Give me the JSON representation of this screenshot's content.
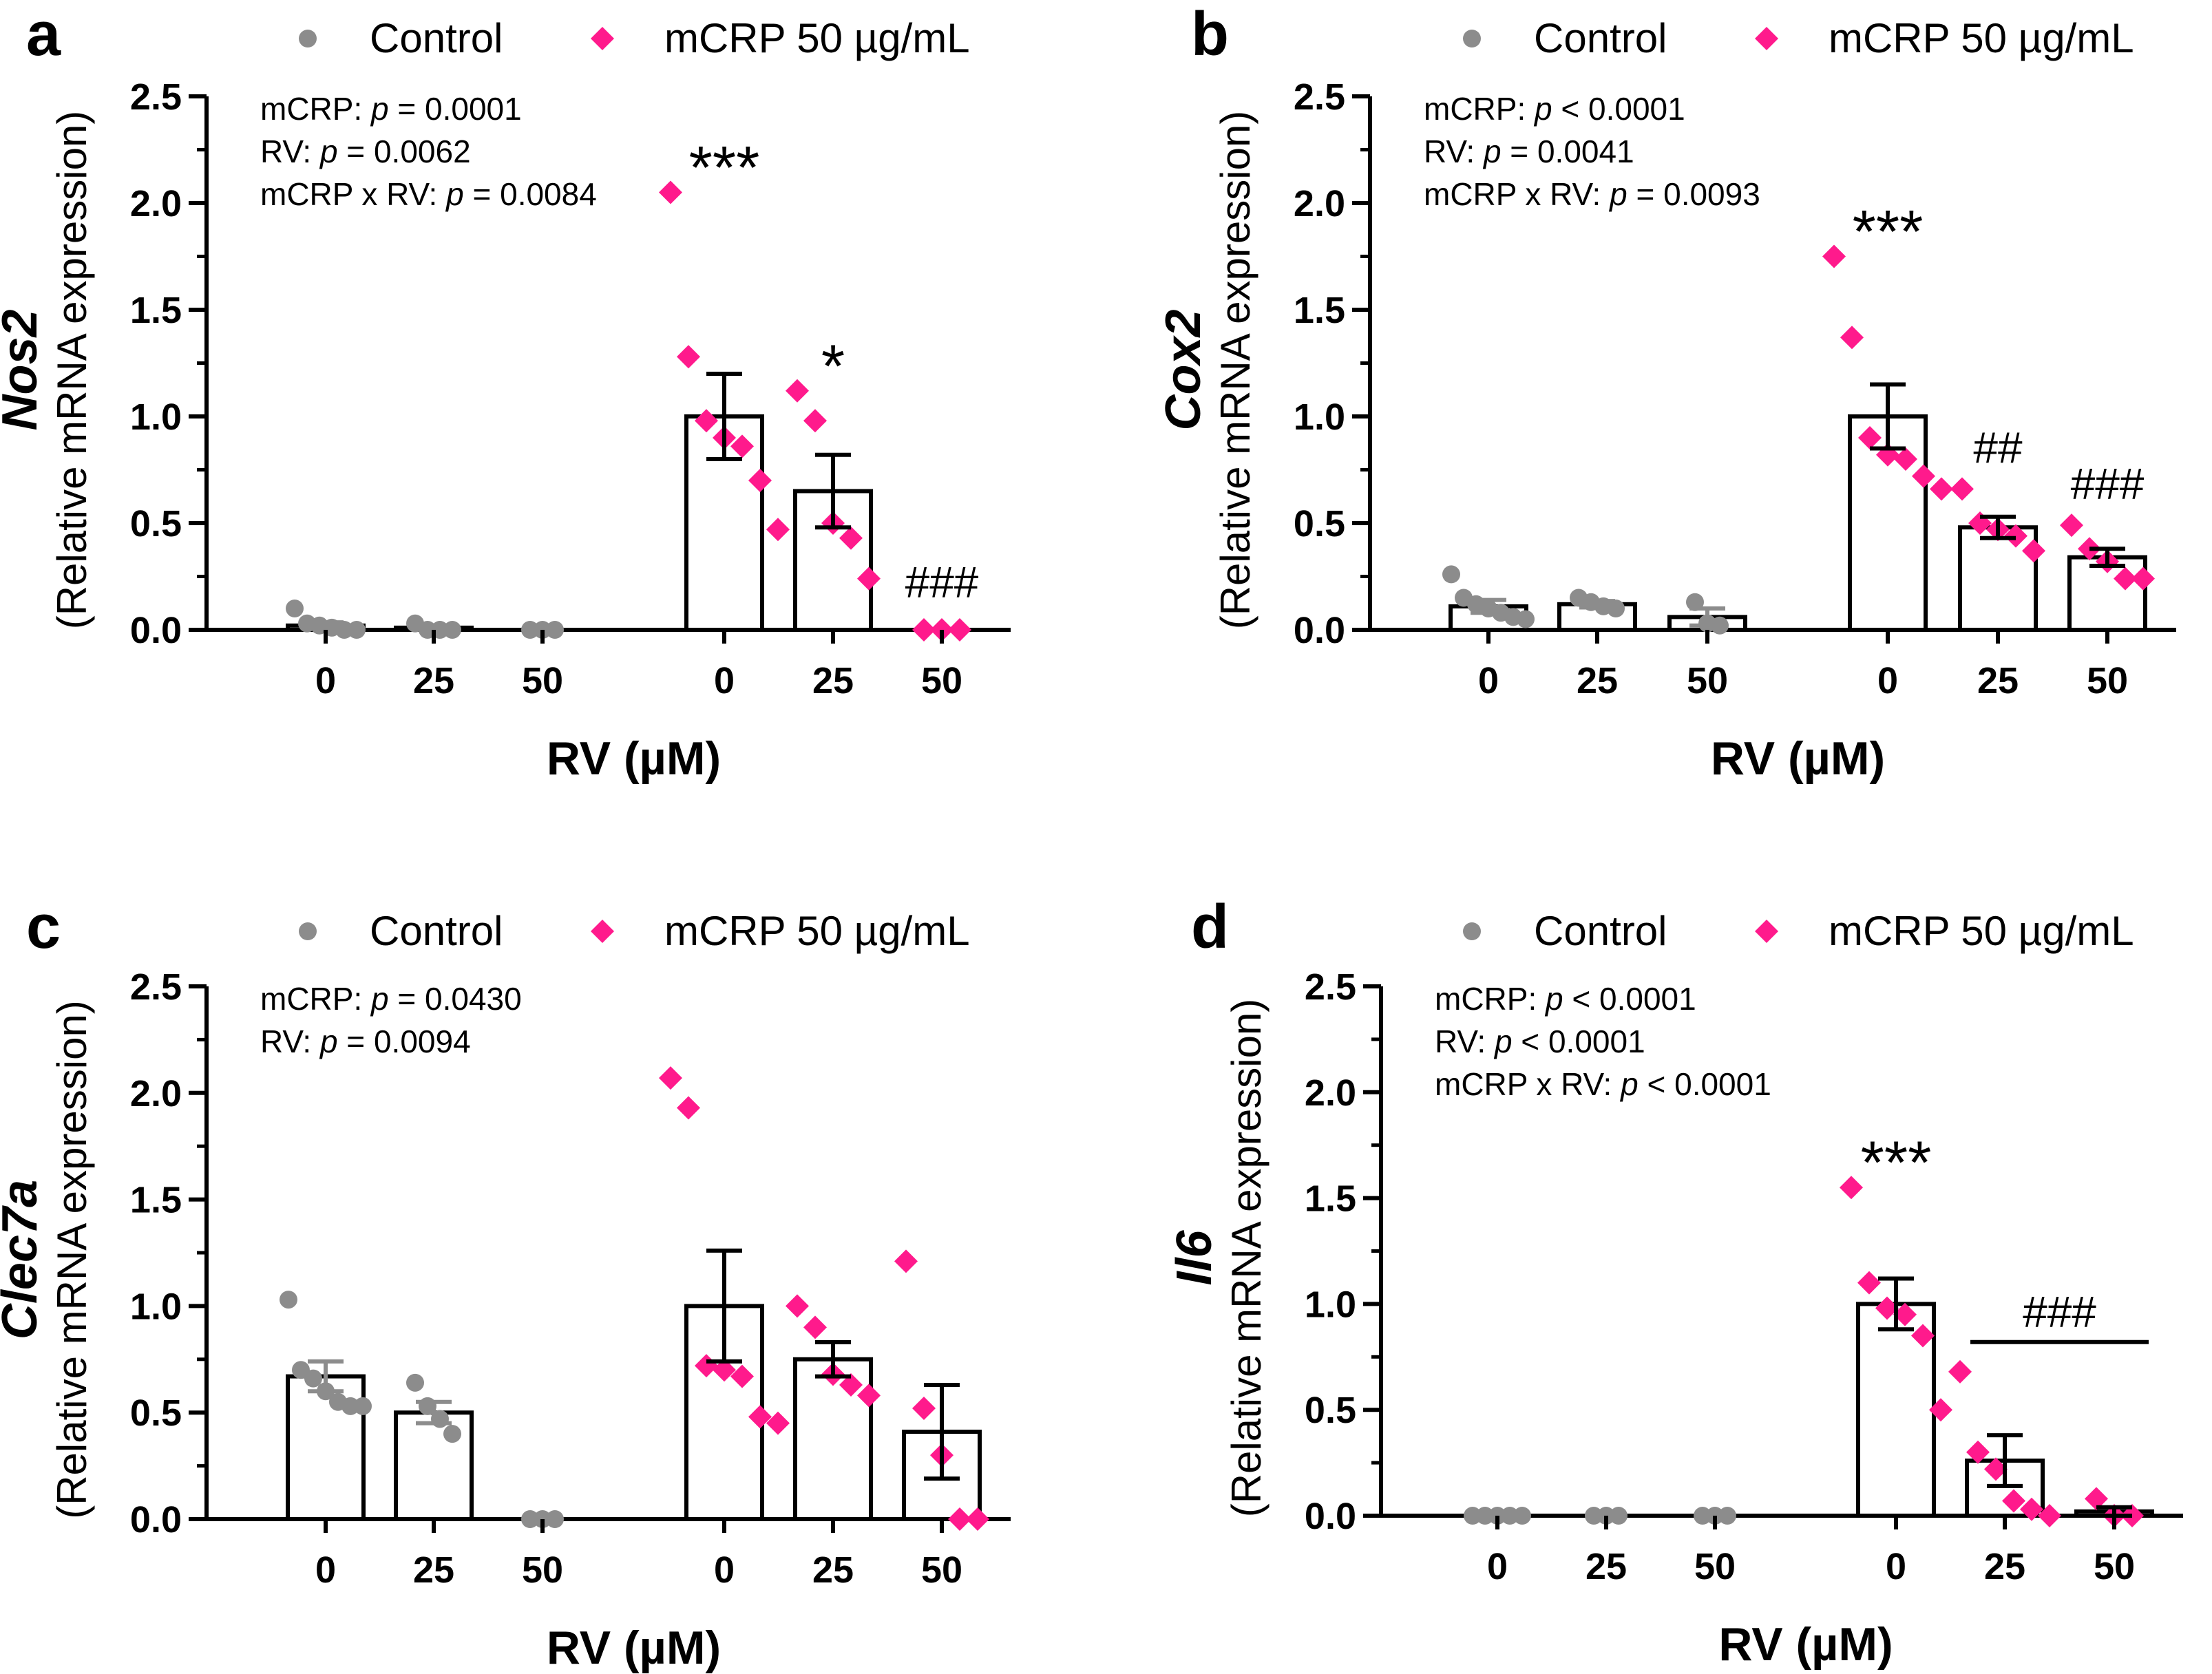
{
  "legend": {
    "control": "Control",
    "mcrp": "mCRP 50 µg/mL",
    "control_color": "#8c8c8c",
    "mcrp_color": "#ff1a8c"
  },
  "chart_data": [
    {
      "panel": "a",
      "type": "bar",
      "gene": "Nos2",
      "ylabel": "(Relative mRNA expression)",
      "xlabel": "RV (µM)",
      "ylim": [
        0,
        2.5
      ],
      "yticks": [
        "0.0",
        "0.5",
        "1.0",
        "1.5",
        "2.0",
        "2.5"
      ],
      "stats": [
        {
          "prefix": "mCRP: ",
          "p": "p",
          "suffix": " = 0.0001"
        },
        {
          "prefix": "RV: ",
          "p": "p",
          "suffix": " = 0.0062"
        },
        {
          "prefix": "mCRP x RV: ",
          "p": "p",
          "suffix": " = 0.0084"
        }
      ],
      "groups": [
        {
          "label": "0",
          "series": "Control",
          "mean": 0.02,
          "sem": 0.015,
          "points": [
            0.1,
            0.03,
            0.02,
            0.01,
            0.0,
            0.0
          ],
          "sig": ""
        },
        {
          "label": "25",
          "series": "Control",
          "mean": 0.01,
          "sem": 0.005,
          "points": [
            0.03,
            0.0,
            0.0,
            0.0
          ],
          "sig": ""
        },
        {
          "label": "50",
          "series": "Control",
          "mean": 0.0,
          "sem": 0.0,
          "points": [
            0.0,
            0.0,
            0.0
          ],
          "sig": ""
        },
        {
          "label": "0",
          "series": "mCRP 50 µg/mL",
          "mean": 1.0,
          "sem": 0.2,
          "points": [
            2.05,
            1.28,
            0.98,
            0.9,
            0.86,
            0.7,
            0.47
          ],
          "sig": "***"
        },
        {
          "label": "25",
          "series": "mCRP 50 µg/mL",
          "mean": 0.65,
          "sem": 0.17,
          "points": [
            1.12,
            0.98,
            0.5,
            0.43,
            0.24
          ],
          "sig": "*"
        },
        {
          "label": "50",
          "series": "mCRP 50 µg/mL",
          "mean": 0.0,
          "sem": 0.0,
          "points": [
            0.0,
            0.0,
            0.0
          ],
          "sig": "###"
        }
      ],
      "group_line": null
    },
    {
      "panel": "b",
      "type": "bar",
      "gene": "Cox2",
      "ylabel": "(Relative mRNA expression)",
      "xlabel": "RV (µM)",
      "ylim": [
        0,
        2.5
      ],
      "yticks": [
        "0.0",
        "0.5",
        "1.0",
        "1.5",
        "2.0",
        "2.5"
      ],
      "stats": [
        {
          "prefix": "mCRP: ",
          "p": "p",
          "suffix": " < 0.0001"
        },
        {
          "prefix": "RV: ",
          "p": "p",
          "suffix": " = 0.0041"
        },
        {
          "prefix": "mCRP x RV: ",
          "p": "p",
          "suffix": " = 0.0093"
        }
      ],
      "groups": [
        {
          "label": "0",
          "series": "Control",
          "mean": 0.11,
          "sem": 0.03,
          "points": [
            0.26,
            0.15,
            0.12,
            0.1,
            0.08,
            0.06,
            0.05
          ],
          "sig": ""
        },
        {
          "label": "25",
          "series": "Control",
          "mean": 0.12,
          "sem": 0.015,
          "points": [
            0.15,
            0.13,
            0.11,
            0.1
          ],
          "sig": ""
        },
        {
          "label": "50",
          "series": "Control",
          "mean": 0.06,
          "sem": 0.04,
          "points": [
            0.13,
            0.03,
            0.02
          ],
          "sig": ""
        },
        {
          "label": "0",
          "series": "mCRP 50 µg/mL",
          "mean": 1.0,
          "sem": 0.15,
          "points": [
            1.75,
            1.37,
            0.9,
            0.82,
            0.8,
            0.72,
            0.66
          ],
          "sig": "***"
        },
        {
          "label": "25",
          "series": "mCRP 50 µg/mL",
          "mean": 0.48,
          "sem": 0.05,
          "points": [
            0.66,
            0.5,
            0.47,
            0.44,
            0.37
          ],
          "sig": "##"
        },
        {
          "label": "50",
          "series": "mCRP 50 µg/mL",
          "mean": 0.34,
          "sem": 0.04,
          "points": [
            0.49,
            0.38,
            0.32,
            0.24,
            0.24
          ],
          "sig": "###"
        }
      ],
      "group_line": null
    },
    {
      "panel": "c",
      "type": "bar",
      "gene": "Clec7a",
      "ylabel": "(Relative mRNA expression)",
      "xlabel": "RV (µM)",
      "ylim": [
        0,
        2.5
      ],
      "yticks": [
        "0.0",
        "0.5",
        "1.0",
        "1.5",
        "2.0",
        "2.5"
      ],
      "stats": [
        {
          "prefix": "mCRP: ",
          "p": "p",
          "suffix": " = 0.0430"
        },
        {
          "prefix": "RV: ",
          "p": "p",
          "suffix": " = 0.0094"
        }
      ],
      "groups": [
        {
          "label": "0",
          "series": "Control",
          "mean": 0.67,
          "sem": 0.07,
          "points": [
            1.03,
            0.7,
            0.66,
            0.6,
            0.55,
            0.53,
            0.53
          ],
          "sig": ""
        },
        {
          "label": "25",
          "series": "Control",
          "mean": 0.5,
          "sem": 0.05,
          "points": [
            0.64,
            0.53,
            0.47,
            0.4
          ],
          "sig": ""
        },
        {
          "label": "50",
          "series": "Control",
          "mean": 0.0,
          "sem": 0.0,
          "points": [
            0.0,
            0.0,
            0.0
          ],
          "sig": ""
        },
        {
          "label": "0",
          "series": "mCRP 50 µg/mL",
          "mean": 1.0,
          "sem": 0.26,
          "points": [
            2.07,
            1.93,
            0.72,
            0.7,
            0.67,
            0.48,
            0.45
          ],
          "sig": ""
        },
        {
          "label": "25",
          "series": "mCRP 50 µg/mL",
          "mean": 0.75,
          "sem": 0.08,
          "points": [
            1.0,
            0.9,
            0.68,
            0.63,
            0.58
          ],
          "sig": ""
        },
        {
          "label": "50",
          "series": "mCRP 50 µg/mL",
          "mean": 0.41,
          "sem": 0.22,
          "points": [
            1.21,
            0.52,
            0.3,
            0.0,
            0.0
          ],
          "sig": ""
        }
      ],
      "group_line": null
    },
    {
      "panel": "d",
      "type": "bar",
      "gene": "Il6",
      "ylabel": "(Relative mRNA expression)",
      "xlabel": "RV (µM)",
      "ylim": [
        0,
        2.5
      ],
      "yticks": [
        "0.0",
        "0.5",
        "1.0",
        "1.5",
        "2.0",
        "2.5"
      ],
      "stats": [
        {
          "prefix": "mCRP: ",
          "p": "p",
          "suffix": " < 0.0001"
        },
        {
          "prefix": "RV: ",
          "p": "p",
          "suffix": " < 0.0001"
        },
        {
          "prefix": "mCRP x RV: ",
          "p": "p",
          "suffix": " < 0.0001"
        }
      ],
      "groups": [
        {
          "label": "0",
          "series": "Control",
          "mean": 0.0,
          "sem": 0.0,
          "points": [
            0.0,
            0.0,
            0.0,
            0.0,
            0.0
          ],
          "sig": ""
        },
        {
          "label": "25",
          "series": "Control",
          "mean": 0.0,
          "sem": 0.0,
          "points": [
            0.0,
            0.0,
            0.0
          ],
          "sig": ""
        },
        {
          "label": "50",
          "series": "Control",
          "mean": 0.0,
          "sem": 0.0,
          "points": [
            0.0,
            0.0,
            0.0
          ],
          "sig": ""
        },
        {
          "label": "0",
          "series": "mCRP 50 µg/mL",
          "mean": 1.0,
          "sem": 0.12,
          "points": [
            1.55,
            1.1,
            0.98,
            0.95,
            0.85,
            0.5
          ],
          "sig": "***"
        },
        {
          "label": "25",
          "series": "mCRP 50 µg/mL",
          "mean": 0.26,
          "sem": 0.12,
          "points": [
            0.68,
            0.3,
            0.22,
            0.07,
            0.03,
            0.0
          ],
          "sig": ""
        },
        {
          "label": "50",
          "series": "mCRP 50 µg/mL",
          "mean": 0.02,
          "sem": 0.02,
          "points": [
            0.08,
            0.0,
            0.0
          ],
          "sig": ""
        }
      ],
      "group_line": {
        "from": 4,
        "to": 5,
        "label": "###",
        "y": 0.82
      }
    }
  ]
}
